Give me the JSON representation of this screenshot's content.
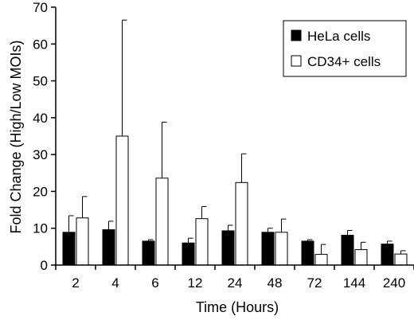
{
  "chart_data": {
    "type": "bar",
    "categories": [
      "2",
      "4",
      "6",
      "12",
      "24",
      "48",
      "72",
      "144",
      "240"
    ],
    "series": [
      {
        "name": "HeLa cells",
        "color": "#000000",
        "values": [
          8.9,
          9.6,
          6.5,
          6.0,
          9.3,
          8.9,
          6.5,
          8.1,
          5.7
        ],
        "errors": [
          4.5,
          2.3,
          0.4,
          1.3,
          1.5,
          1.1,
          0.4,
          1.3,
          0.8
        ]
      },
      {
        "name": "CD34+ cells",
        "color": "#ffffff",
        "values": [
          12.8,
          35.0,
          23.6,
          12.6,
          22.4,
          8.9,
          2.9,
          4.2,
          3.0
        ],
        "errors": [
          5.8,
          31.5,
          15.2,
          3.3,
          7.8,
          3.6,
          2.7,
          2.0,
          0.9
        ]
      }
    ],
    "xlabel": "Time (Hours)",
    "ylabel": "Fold Change (High/Low MOIs)",
    "ylim": [
      0,
      70
    ],
    "yticks": [
      0,
      10,
      20,
      30,
      40,
      50,
      60,
      70
    ],
    "legend_position": "top-right",
    "grid": false
  }
}
